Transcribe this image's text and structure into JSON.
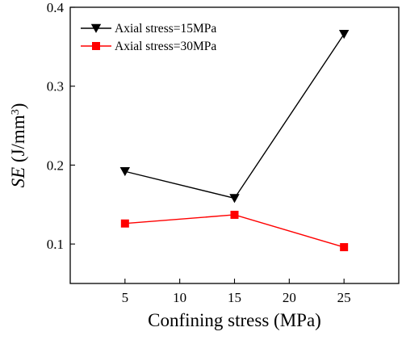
{
  "chart_data": {
    "type": "line",
    "xlabel": "Confining stress (MPa)",
    "ylabel_main": "SE",
    "ylabel_unit_prefix": " (J/mm",
    "ylabel_unit_sup": "3",
    "ylabel_unit_suffix": ")",
    "xlim": [
      0,
      30
    ],
    "ylim": [
      0.05,
      0.4
    ],
    "xticks": [
      5,
      10,
      15,
      20,
      25
    ],
    "yticks": [
      0.1,
      0.2,
      0.3,
      0.4
    ],
    "x": [
      5,
      15,
      25
    ],
    "legend_position": "top-left",
    "grid": false,
    "series": [
      {
        "name": "Axial stress=15MPa",
        "marker": "triangle-down",
        "color": "#000000",
        "values": [
          0.192,
          0.158,
          0.366
        ]
      },
      {
        "name": "Axial stress=30MPa",
        "marker": "square",
        "color": "#ff0000",
        "values": [
          0.126,
          0.137,
          0.096
        ]
      }
    ]
  }
}
